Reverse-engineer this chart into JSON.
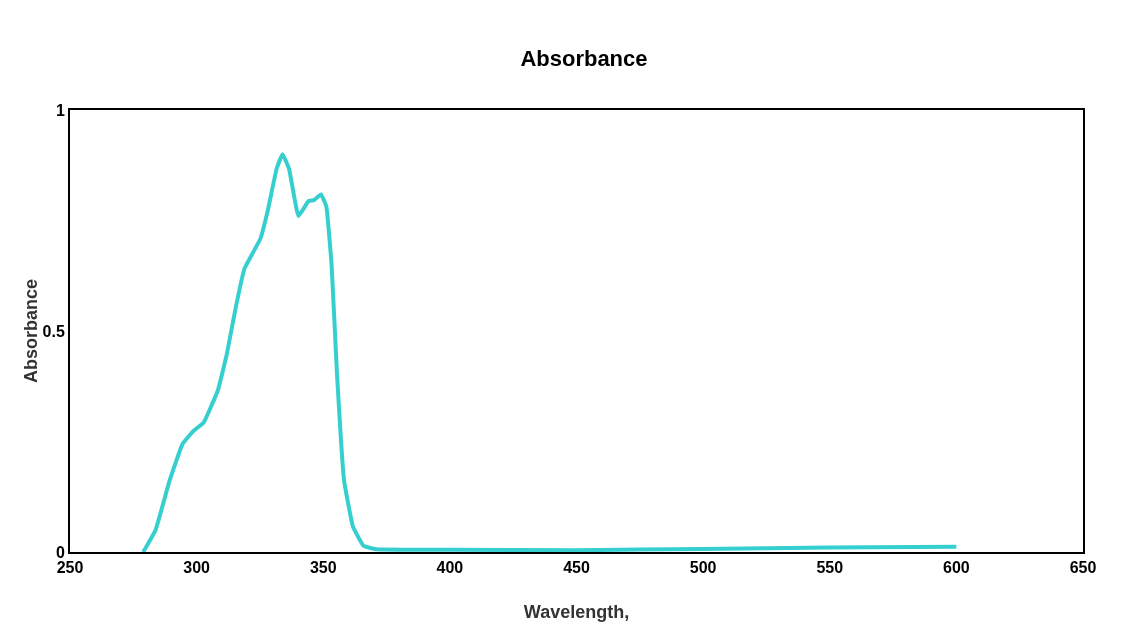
{
  "chart_data": {
    "type": "line",
    "title": "Absorbance",
    "xlabel": "Wavelength,",
    "ylabel": "Absorbance",
    "x": [
      278.9,
      283.8,
      289.4,
      294.4,
      298.6,
      302.8,
      308.4,
      311.9,
      315.4,
      318.9,
      325.2,
      328.0,
      331.6,
      333.9,
      336.5,
      340.2,
      344.2,
      346.3,
      349.1,
      351.2,
      353.3,
      355.4,
      358.2,
      361.7,
      365.9,
      370.8,
      400,
      450,
      500,
      550,
      600
    ],
    "series": [
      {
        "color": "#36cfcf",
        "values": [
          0,
          0.05,
          0.163,
          0.244,
          0.273,
          0.293,
          0.366,
          0.447,
          0.552,
          0.641,
          0.709,
          0.77,
          0.867,
          0.9,
          0.867,
          0.76,
          0.794,
          0.796,
          0.809,
          0.782,
          0.649,
          0.406,
          0.163,
          0.058,
          0.014,
          0.006,
          0.005,
          0.004,
          0.007,
          0.01,
          0.012
        ]
      }
    ],
    "xlim": [
      250,
      650
    ],
    "xticks": [
      250,
      300,
      350,
      400,
      450,
      500,
      550,
      600,
      650
    ],
    "ylim": [
      0,
      1
    ],
    "yticks": [
      0,
      0.5,
      1
    ],
    "legend": false,
    "marker": "none",
    "line_style": "solid"
  }
}
